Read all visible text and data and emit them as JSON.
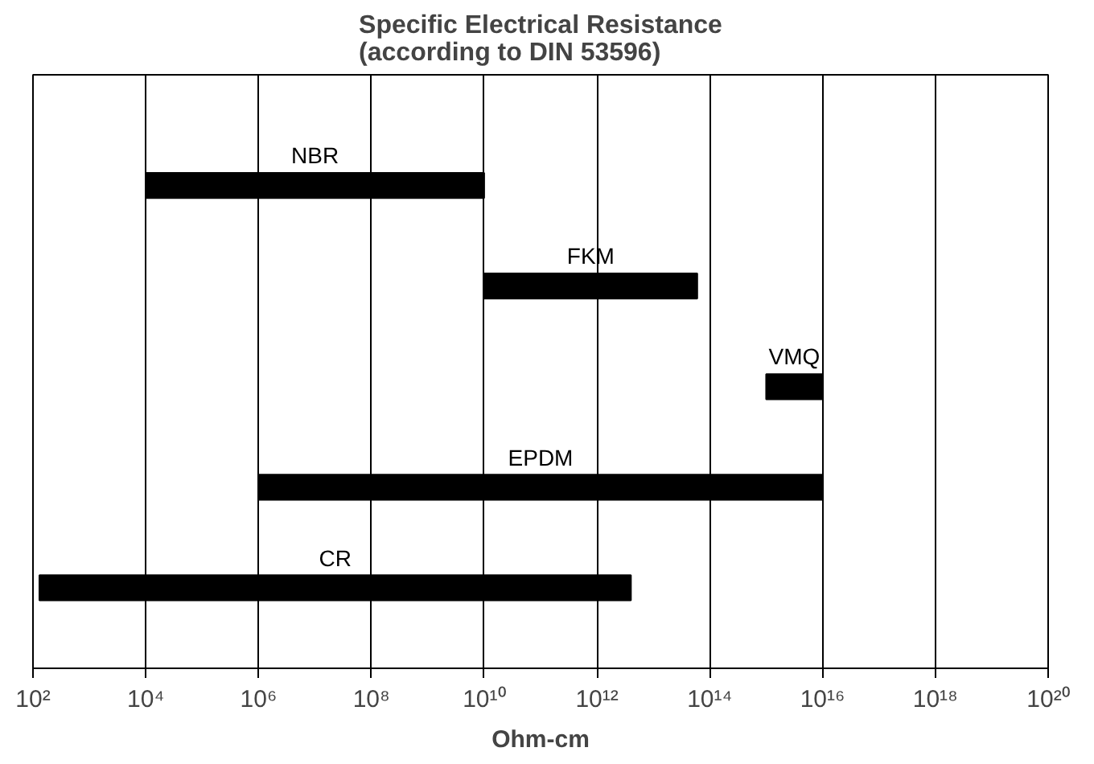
{
  "chart_data": {
    "type": "bar",
    "orientation": "horizontal",
    "title": "Specific Electrical Resistance\n(according to DIN 53596)",
    "xlabel": "Ohm-cm",
    "categories": [
      "NBR",
      "FKM",
      "VMQ",
      "EPDM",
      "CR"
    ],
    "base": [
      10000,
      10000000000,
      1000000000000000,
      1000000,
      130
    ],
    "values": [
      9999990000,
      60000000000000,
      9000000000000000,
      9999999999000000,
      3999999999870
    ],
    "color": "#000000",
    "log": "x",
    "xlim": [
      100,
      100000000000000000000
    ],
    "xticks": [
      {
        "value": 100,
        "label": "10²"
      },
      {
        "value": 10000,
        "label": "10⁴"
      },
      {
        "value": 1000000,
        "label": "10⁶"
      },
      {
        "value": 100000000,
        "label": "10⁸"
      },
      {
        "value": 10000000000,
        "label": "10¹⁰"
      },
      {
        "value": 1000000000000,
        "label": "10¹²"
      },
      {
        "value": 100000000000000,
        "label": "10¹⁴"
      },
      {
        "value": 10000000000000000,
        "label": "10¹⁶"
      },
      {
        "value": 1000000000000000000,
        "label": "10¹⁸"
      },
      {
        "value": 100000000000000000000,
        "label": "10²⁰"
      }
    ],
    "grid": "x",
    "tick_labels": "x"
  }
}
